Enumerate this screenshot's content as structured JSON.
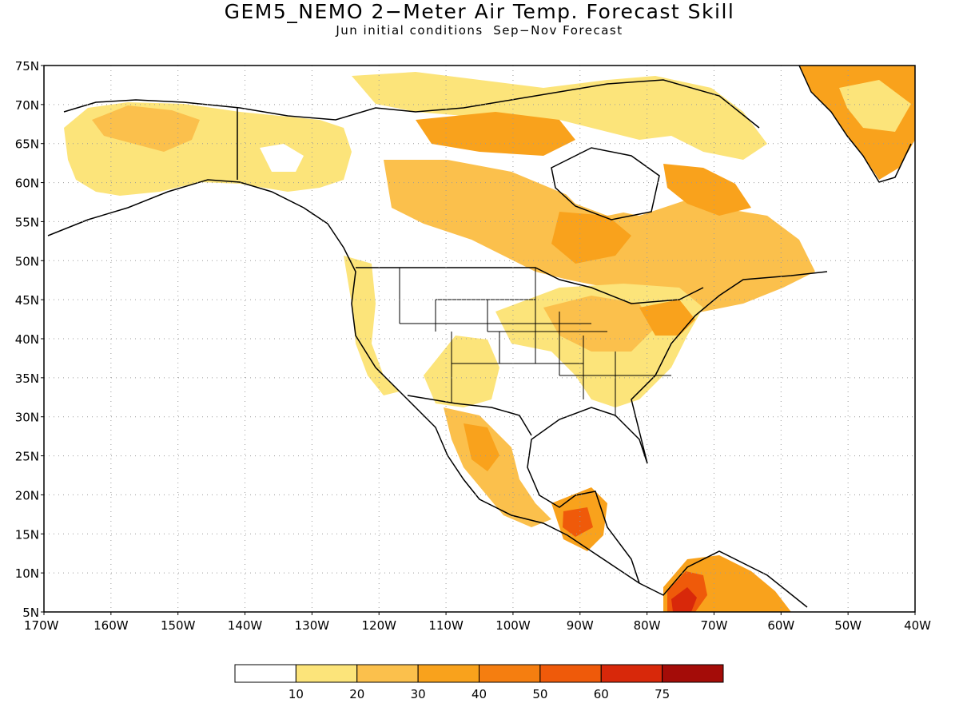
{
  "title": "GEM5_NEMO 2−Meter Air Temp. Forecast Skill",
  "subtitle": "Jun initial conditions  Sep−Nov Forecast",
  "map": {
    "lon_range": [
      -170,
      -40
    ],
    "lat_range": [
      5,
      75
    ],
    "grid": "dotted",
    "lat_labels": [
      "5N",
      "10N",
      "15N",
      "20N",
      "25N",
      "30N",
      "35N",
      "40N",
      "45N",
      "50N",
      "55N",
      "60N",
      "65N",
      "70N",
      "75N"
    ],
    "lon_labels": [
      "170W",
      "160W",
      "150W",
      "140W",
      "130W",
      "120W",
      "110W",
      "100W",
      "90W",
      "80W",
      "70W",
      "60W",
      "50W",
      "40W"
    ]
  },
  "colorbar": {
    "colors": [
      "#ffffff",
      "#fce47a",
      "#fbc04c",
      "#f9a21c",
      "#f57e10",
      "#ef5a0a",
      "#d8280a",
      "#a40c08"
    ],
    "labels": [
      "10",
      "20",
      "30",
      "40",
      "50",
      "60",
      "75"
    ]
  }
}
